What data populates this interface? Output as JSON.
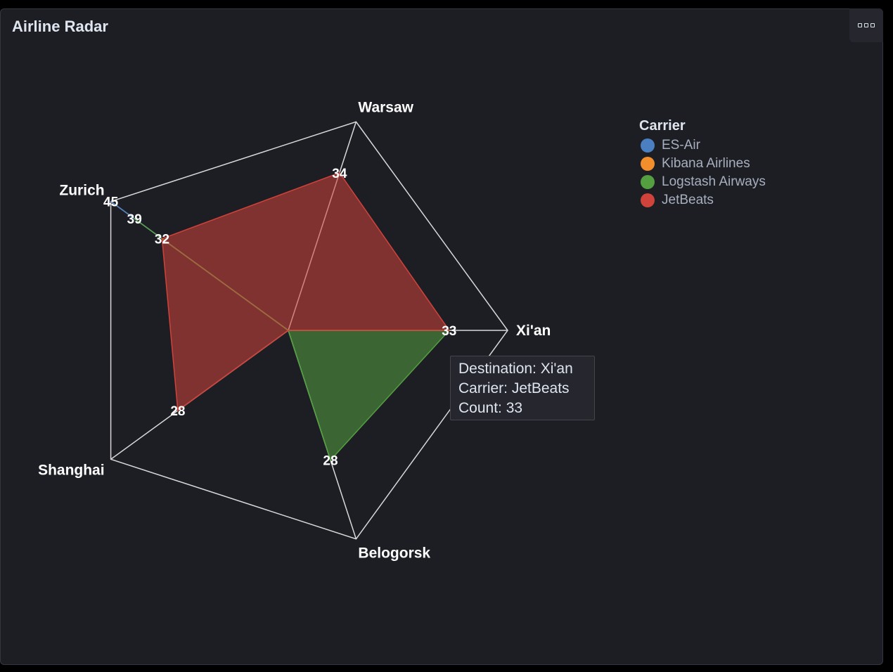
{
  "panel": {
    "title": "Airline Radar",
    "menu_icon": "options-menu-icon"
  },
  "legend": {
    "title": "Carrier"
  },
  "tooltip": {
    "destination": "Destination: Xi'an",
    "carrier": "Carrier: JetBeats",
    "count": "Count: 33"
  },
  "chart_data": {
    "type": "radar",
    "title": "Airline Radar",
    "axes": [
      "Warsaw",
      "Xi'an",
      "Belogorsk",
      "Shanghai",
      "Zurich"
    ],
    "rmax": 45,
    "legend_title": "Carrier",
    "legend_position": "right",
    "series": [
      {
        "name": "ES-Air",
        "color": "#4a7fc1",
        "values": [
          0,
          33,
          0,
          0,
          45
        ]
      },
      {
        "name": "Kibana Airlines",
        "color": "#f28e2b",
        "values": [
          0,
          0,
          0,
          0,
          32
        ]
      },
      {
        "name": "Logstash Airways",
        "color": "#54a040",
        "values": [
          0,
          33,
          28,
          0,
          39
        ]
      },
      {
        "name": "JetBeats",
        "color": "#d0433b",
        "values": [
          34,
          33,
          0,
          28,
          32
        ]
      }
    ],
    "data_labels": [
      {
        "axis": "Zurich",
        "value": 45
      },
      {
        "axis": "Zurich",
        "value": 39
      },
      {
        "axis": "Zurich",
        "value": 32
      },
      {
        "axis": "Warsaw",
        "value": 34
      },
      {
        "axis": "Xi'an",
        "value": 33
      },
      {
        "axis": "Belogorsk",
        "value": 28
      },
      {
        "axis": "Shanghai",
        "value": 28
      }
    ]
  }
}
